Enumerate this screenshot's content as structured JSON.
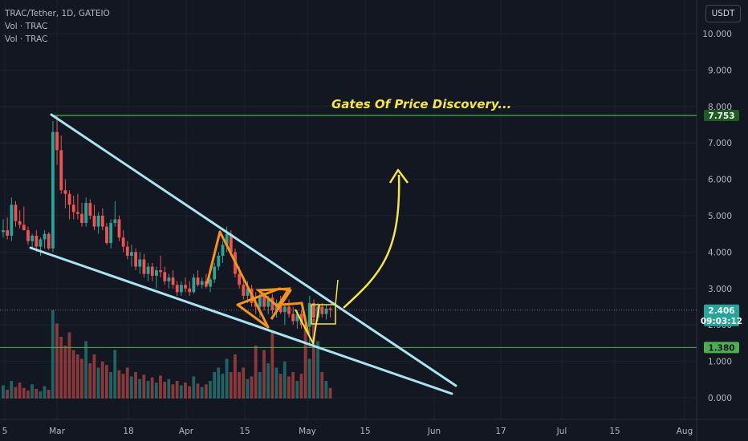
{
  "legend": {
    "symbol_line": "TRAC/Tether, 1D, GATEIO",
    "vol_line_1": "Vol · TRAC",
    "vol_line_2": "Vol · TRAC"
  },
  "currency_button": "USDT",
  "colors": {
    "background": "#131722",
    "up": "#26a69a",
    "down": "#ef5350",
    "grid": "#1e222d",
    "trendline": "#a8e4f0",
    "orange": "#f7931a",
    "yellow": "#f5e642",
    "green_line": "#4caf50",
    "resistance_line": "#2e7d32"
  },
  "chart_data": {
    "type": "candlestick",
    "symbol": "TRAC/Tether",
    "interval": "1D",
    "exchange": "GATEIO",
    "y_ticks": [
      "0.000",
      "1.000",
      "2.000",
      "3.000",
      "4.000",
      "5.000",
      "6.000",
      "7.000",
      "8.000",
      "9.000",
      "10.000"
    ],
    "x_ticks": [
      "5",
      "Mar",
      "18",
      "Apr",
      "15",
      "May",
      "15",
      "Jun",
      "17",
      "Jul",
      "15",
      "Aug"
    ],
    "ylim": [
      -0.6,
      10.9
    ],
    "last_price": "2.406",
    "countdown": "09:03:12",
    "levels": [
      {
        "value": 7.753,
        "label": "7.753"
      },
      {
        "value": 1.38,
        "label": "1.380"
      }
    ],
    "annotation": "Gates Of Price Discovery...",
    "candles": [
      [
        4.55,
        4.9,
        4.4,
        4.6
      ],
      [
        4.6,
        4.95,
        4.35,
        4.45
      ],
      [
        4.45,
        5.5,
        4.3,
        5.3
      ],
      [
        5.3,
        5.4,
        4.7,
        4.85
      ],
      [
        4.85,
        5.15,
        4.65,
        4.75
      ],
      [
        4.75,
        5.25,
        4.6,
        4.6
      ],
      [
        4.6,
        4.7,
        4.2,
        4.3
      ],
      [
        4.3,
        4.5,
        4.1,
        4.45
      ],
      [
        4.45,
        4.6,
        4.0,
        4.15
      ],
      [
        4.15,
        4.4,
        3.9,
        4.35
      ],
      [
        4.35,
        4.6,
        4.1,
        4.5
      ],
      [
        4.5,
        4.55,
        4.05,
        4.1
      ],
      [
        4.1,
        7.6,
        4.0,
        7.3
      ],
      [
        7.3,
        7.75,
        6.4,
        6.8
      ],
      [
        6.8,
        7.2,
        5.6,
        5.7
      ],
      [
        5.7,
        6.0,
        5.2,
        5.6
      ],
      [
        5.6,
        5.7,
        4.9,
        5.3
      ],
      [
        5.3,
        5.55,
        4.9,
        5.1
      ],
      [
        5.1,
        5.6,
        4.9,
        5.05
      ],
      [
        5.05,
        5.35,
        4.7,
        4.8
      ],
      [
        4.8,
        5.5,
        4.7,
        5.35
      ],
      [
        5.35,
        5.45,
        4.9,
        5.0
      ],
      [
        5.0,
        5.3,
        4.6,
        4.7
      ],
      [
        4.7,
        5.1,
        4.5,
        5.0
      ],
      [
        5.0,
        5.2,
        4.6,
        4.7
      ],
      [
        4.7,
        4.8,
        4.2,
        4.25
      ],
      [
        4.25,
        4.9,
        4.1,
        4.8
      ],
      [
        4.8,
        5.4,
        4.7,
        4.9
      ],
      [
        4.9,
        5.0,
        4.3,
        4.4
      ],
      [
        4.4,
        4.6,
        4.0,
        4.15
      ],
      [
        4.15,
        4.3,
        3.8,
        3.9
      ],
      [
        3.9,
        4.2,
        3.6,
        4.0
      ],
      [
        4.0,
        4.1,
        3.5,
        3.6
      ],
      [
        3.6,
        4.0,
        3.4,
        3.8
      ],
      [
        3.8,
        3.95,
        3.3,
        3.4
      ],
      [
        3.4,
        3.7,
        3.2,
        3.6
      ],
      [
        3.6,
        3.7,
        3.2,
        3.35
      ],
      [
        3.35,
        3.6,
        3.0,
        3.5
      ],
      [
        3.5,
        3.9,
        3.3,
        3.45
      ],
      [
        3.45,
        3.6,
        3.1,
        3.2
      ],
      [
        3.2,
        3.4,
        3.0,
        3.3
      ],
      [
        3.3,
        3.5,
        3.0,
        3.1
      ],
      [
        3.1,
        3.2,
        2.8,
        2.9
      ],
      [
        2.9,
        3.2,
        2.8,
        3.1
      ],
      [
        3.1,
        3.3,
        2.9,
        3.0
      ],
      [
        3.0,
        3.2,
        2.8,
        2.9
      ],
      [
        2.9,
        3.4,
        2.85,
        3.3
      ],
      [
        3.3,
        3.5,
        3.05,
        3.1
      ],
      [
        3.1,
        3.3,
        3.0,
        3.2
      ],
      [
        3.2,
        3.4,
        3.0,
        3.05
      ],
      [
        3.05,
        3.3,
        2.9,
        3.25
      ],
      [
        3.25,
        3.7,
        3.15,
        3.6
      ],
      [
        3.6,
        4.0,
        3.5,
        3.9
      ],
      [
        3.9,
        4.3,
        3.7,
        4.2
      ],
      [
        4.2,
        4.7,
        4.0,
        4.5
      ],
      [
        4.5,
        4.6,
        3.9,
        4.0
      ],
      [
        4.0,
        4.1,
        3.3,
        3.4
      ],
      [
        3.4,
        3.6,
        3.0,
        3.1
      ],
      [
        3.1,
        3.3,
        2.7,
        2.8
      ],
      [
        2.8,
        3.2,
        2.6,
        3.0
      ],
      [
        3.0,
        3.1,
        2.5,
        2.6
      ],
      [
        2.6,
        2.9,
        2.3,
        2.5
      ],
      [
        2.5,
        2.9,
        2.2,
        2.8
      ],
      [
        2.8,
        2.9,
        2.4,
        2.5
      ],
      [
        2.5,
        2.8,
        2.3,
        2.75
      ],
      [
        2.75,
        2.85,
        2.3,
        2.4
      ],
      [
        2.4,
        2.7,
        2.2,
        2.6
      ],
      [
        2.6,
        2.8,
        2.3,
        2.35
      ],
      [
        2.35,
        2.6,
        2.0,
        2.5
      ],
      [
        2.5,
        2.7,
        2.2,
        2.3
      ],
      [
        2.3,
        2.5,
        2.0,
        2.1
      ],
      [
        2.1,
        2.4,
        1.9,
        2.3
      ],
      [
        2.3,
        2.4,
        1.9,
        2.0
      ],
      [
        2.0,
        2.2,
        1.8,
        1.95
      ],
      [
        1.95,
        2.8,
        1.4,
        2.6
      ],
      [
        2.6,
        2.7,
        2.1,
        2.2
      ],
      [
        2.2,
        2.6,
        2.1,
        2.5
      ],
      [
        2.5,
        2.6,
        2.2,
        2.3
      ],
      [
        2.3,
        2.55,
        2.15,
        2.45
      ],
      [
        2.45,
        2.5,
        2.2,
        2.406
      ]
    ],
    "volume_scale": [
      0,
      1
    ],
    "volumes": [
      0.15,
      0.1,
      0.2,
      0.13,
      0.18,
      0.12,
      0.09,
      0.16,
      0.11,
      0.08,
      0.14,
      0.1,
      1.0,
      0.85,
      0.7,
      0.6,
      0.75,
      0.55,
      0.5,
      0.45,
      0.65,
      0.4,
      0.5,
      0.35,
      0.42,
      0.38,
      0.3,
      0.55,
      0.32,
      0.28,
      0.35,
      0.25,
      0.3,
      0.22,
      0.27,
      0.2,
      0.24,
      0.18,
      0.26,
      0.19,
      0.22,
      0.16,
      0.2,
      0.15,
      0.18,
      0.14,
      0.25,
      0.17,
      0.13,
      0.16,
      0.2,
      0.3,
      0.35,
      0.28,
      0.45,
      0.3,
      0.5,
      0.3,
      0.35,
      0.22,
      0.25,
      0.6,
      0.3,
      0.55,
      0.4,
      0.75,
      0.35,
      0.28,
      0.42,
      0.25,
      0.3,
      0.2,
      0.28,
      0.85,
      0.45,
      0.9,
      0.65,
      0.3,
      0.2,
      0.12
    ]
  }
}
